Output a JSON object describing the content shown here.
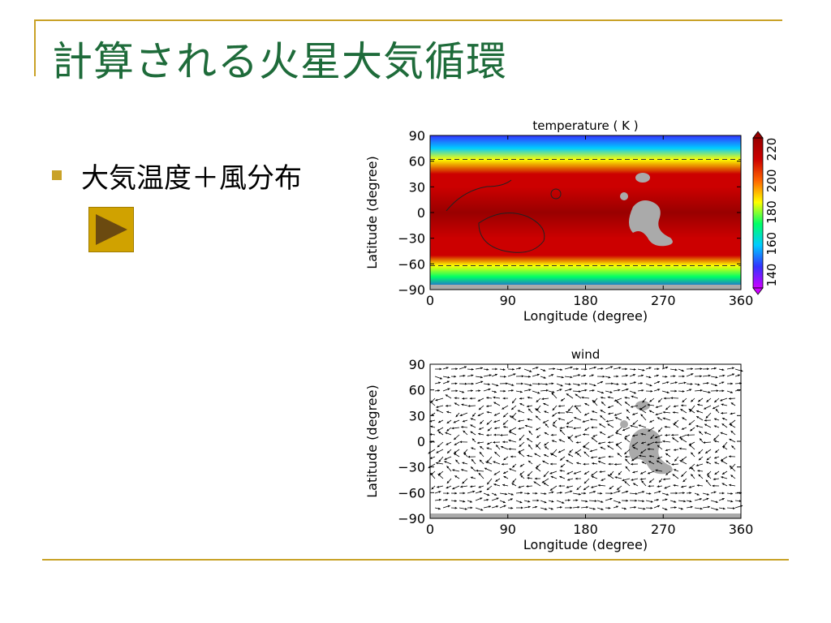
{
  "slide": {
    "title": "計算される火星大気循環",
    "bullet": "大気温度＋風分布",
    "accent_color": "#c9a227",
    "title_color": "#1e6b3a",
    "play_button_icon": "play-triangle-icon"
  },
  "chart_data": [
    {
      "type": "heatmap",
      "title": "temperature ( K )",
      "xlabel": "Longitude (degree)",
      "ylabel": "Latitude (degree)",
      "xlim": [
        0,
        360
      ],
      "ylim": [
        -90,
        90
      ],
      "xticks": [
        "0",
        "90",
        "180",
        "270",
        "360"
      ],
      "yticks": [
        "90",
        "60",
        "30",
        "0",
        "−30",
        "−60",
        "−90"
      ],
      "colorbar": {
        "range": [
          140,
          220
        ],
        "ticks": [
          "140",
          "160",
          "180",
          "200",
          "220"
        ],
        "colormap": [
          "#cc00ff",
          "#3333ff",
          "#00ccff",
          "#00ff66",
          "#ffff00",
          "#ff6600",
          "#cc0000",
          "#990000"
        ]
      },
      "latitude_profile_K": [
        {
          "lat": 90,
          "value": 150
        },
        {
          "lat": 75,
          "value": 165
        },
        {
          "lat": 62,
          "value": 185
        },
        {
          "lat": 45,
          "value": 205
        },
        {
          "lat": 30,
          "value": 212
        },
        {
          "lat": 0,
          "value": 218
        },
        {
          "lat": -30,
          "value": 214
        },
        {
          "lat": -50,
          "value": 206
        },
        {
          "lat": -62,
          "value": 190
        },
        {
          "lat": -75,
          "value": 170
        },
        {
          "lat": -90,
          "value": 155
        }
      ]
    },
    {
      "type": "scatter",
      "title": "wind",
      "xlabel": "Longitude (degree)",
      "ylabel": "Latitude (degree)",
      "xlim": [
        0,
        360
      ],
      "ylim": [
        -90,
        90
      ],
      "xticks": [
        "0",
        "90",
        "180",
        "270",
        "360"
      ],
      "yticks": [
        "90",
        "60",
        "30",
        "0",
        "−30",
        "−60",
        "−90"
      ]
    }
  ]
}
